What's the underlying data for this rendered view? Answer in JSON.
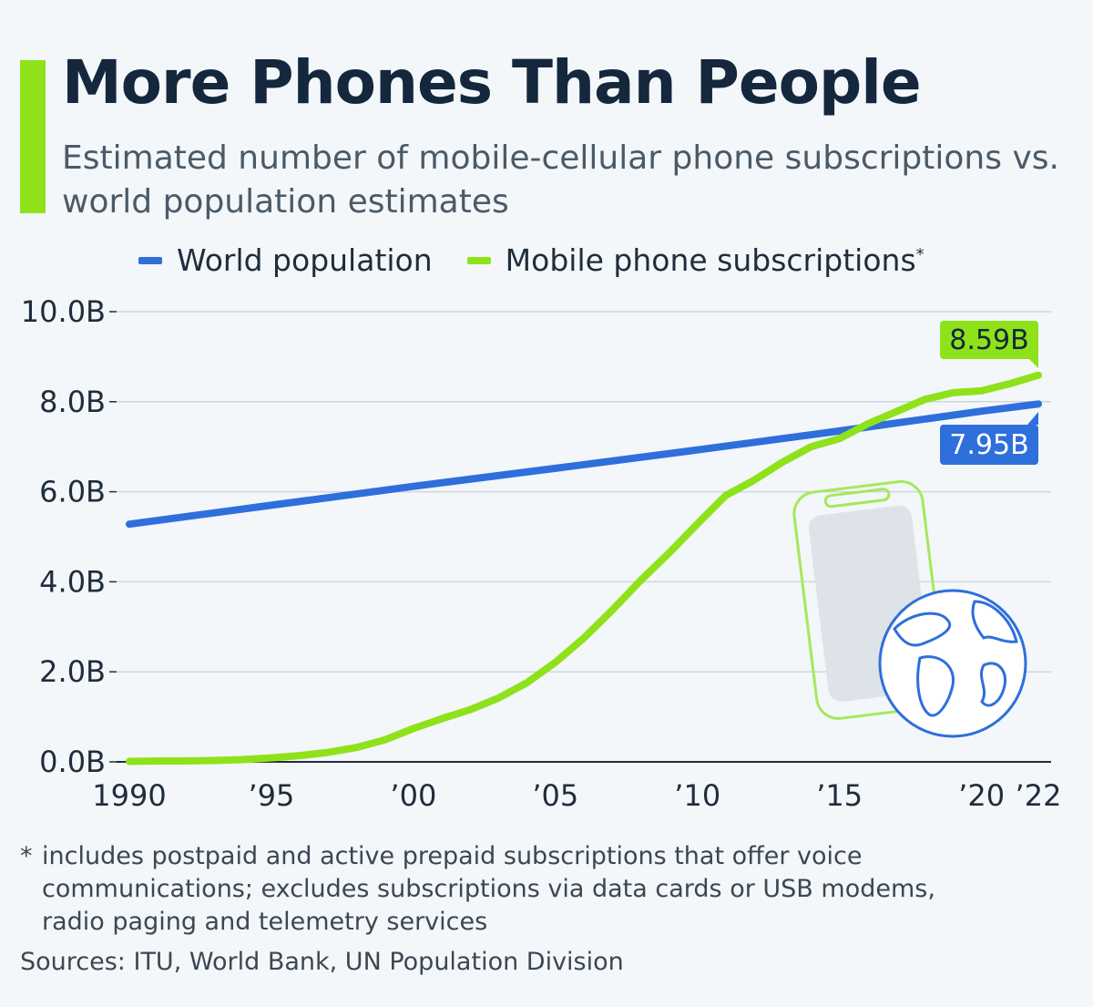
{
  "header": {
    "title": "More Phones Than People",
    "subtitle": "Estimated number of mobile-cellular phone subscriptions vs. world population estimates"
  },
  "legend": {
    "items": [
      {
        "label": "World population",
        "color": "#2e6fdc"
      },
      {
        "label": "Mobile phone subscriptions",
        "marker": "*",
        "color": "#8ee21a"
      }
    ]
  },
  "chart_data": {
    "type": "line",
    "title": "More Phones Than People",
    "ylim": [
      0,
      10
    ],
    "y_ticks": [
      {
        "value": 10,
        "label": "10.0B"
      },
      {
        "value": 8,
        "label": "8.0B"
      },
      {
        "value": 6,
        "label": "6.0B"
      },
      {
        "value": 4,
        "label": "4.0B"
      },
      {
        "value": 2,
        "label": "2.0B"
      },
      {
        "value": 0,
        "label": "0.0B"
      }
    ],
    "x_ticks": [
      {
        "value": 1990,
        "label": "1990"
      },
      {
        "value": 1995,
        "label": "’95"
      },
      {
        "value": 2000,
        "label": "’00"
      },
      {
        "value": 2005,
        "label": "’05"
      },
      {
        "value": 2010,
        "label": "’10"
      },
      {
        "value": 2015,
        "label": "’15"
      },
      {
        "value": 2020,
        "label": "’20"
      },
      {
        "value": 2022,
        "label": "’22"
      }
    ],
    "xlim": [
      1990,
      2022
    ],
    "grid": true,
    "legend_position": "top",
    "series": [
      {
        "name": "World population",
        "color": "#2e6fdc",
        "end_label": "7.95B",
        "points": [
          [
            1990,
            5.28
          ],
          [
            1995,
            5.7
          ],
          [
            2000,
            6.12
          ],
          [
            2005,
            6.52
          ],
          [
            2010,
            6.93
          ],
          [
            2015,
            7.35
          ],
          [
            2020,
            7.79
          ],
          [
            2022,
            7.95
          ]
        ]
      },
      {
        "name": "Mobile phone subscriptions",
        "color": "#8ee21a",
        "end_label": "8.59B",
        "points": [
          [
            1990,
            0.01
          ],
          [
            1991,
            0.02
          ],
          [
            1992,
            0.02
          ],
          [
            1993,
            0.03
          ],
          [
            1994,
            0.05
          ],
          [
            1995,
            0.09
          ],
          [
            1996,
            0.14
          ],
          [
            1997,
            0.21
          ],
          [
            1998,
            0.32
          ],
          [
            1999,
            0.49
          ],
          [
            2000,
            0.74
          ],
          [
            2001,
            0.96
          ],
          [
            2002,
            1.16
          ],
          [
            2003,
            1.42
          ],
          [
            2004,
            1.76
          ],
          [
            2005,
            2.21
          ],
          [
            2006,
            2.75
          ],
          [
            2007,
            3.37
          ],
          [
            2008,
            4.03
          ],
          [
            2009,
            4.64
          ],
          [
            2010,
            5.29
          ],
          [
            2011,
            5.92
          ],
          [
            2012,
            6.26
          ],
          [
            2013,
            6.66
          ],
          [
            2014,
            7.0
          ],
          [
            2015,
            7.18
          ],
          [
            2016,
            7.51
          ],
          [
            2017,
            7.78
          ],
          [
            2018,
            8.05
          ],
          [
            2019,
            8.2
          ],
          [
            2020,
            8.24
          ],
          [
            2021,
            8.4
          ],
          [
            2022,
            8.59
          ]
        ]
      }
    ]
  },
  "footnote": {
    "marker": "*",
    "lines": [
      "includes postpaid and active prepaid subscriptions that offer voice",
      "communications; excludes subscriptions via data cards or USB modems,",
      "radio paging and telemetry services"
    ]
  },
  "sources": "Sources: ITU, World Bank, UN Population Division",
  "illustration": {
    "icon": "smartphone-globe-icon",
    "phone_color": "#a6e85a",
    "globe_color": "#2e6fdc"
  }
}
